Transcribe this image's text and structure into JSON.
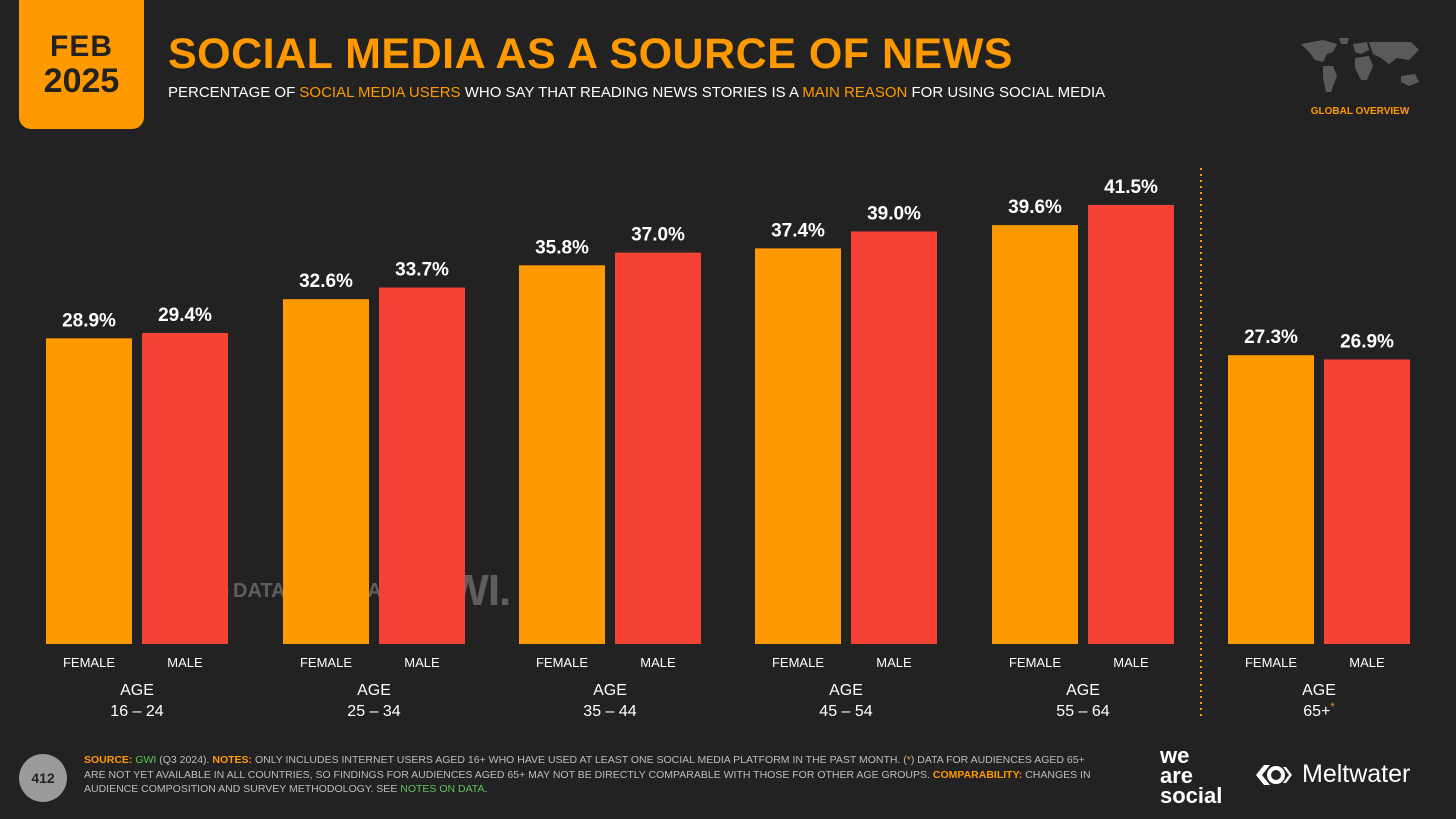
{
  "header": {
    "month": "FEB",
    "year": "2025",
    "title": "SOCIAL MEDIA AS A SOURCE OF NEWS",
    "subtitle_parts": [
      "PERCENTAGE OF ",
      "SOCIAL MEDIA USERS",
      " WHO SAY THAT READING NEWS STORIES IS A ",
      "MAIN REASON",
      " FOR USING SOCIAL MEDIA"
    ],
    "region_label": "GLOBAL OVERVIEW"
  },
  "colors": {
    "accent": "#FF9900",
    "female": "#FF9900",
    "male": "#F44336",
    "background": "#222222",
    "green": "#5FC35F"
  },
  "chart_data": {
    "type": "bar",
    "groups": [
      {
        "age_label": "AGE",
        "age_range": "16 – 24",
        "footnote": ""
      },
      {
        "age_label": "AGE",
        "age_range": "25 – 34",
        "footnote": ""
      },
      {
        "age_label": "AGE",
        "age_range": "35 – 44",
        "footnote": ""
      },
      {
        "age_label": "AGE",
        "age_range": "45 – 54",
        "footnote": ""
      },
      {
        "age_label": "AGE",
        "age_range": "55 – 64",
        "footnote": ""
      },
      {
        "age_label": "AGE",
        "age_range": "65+",
        "footnote": "*"
      }
    ],
    "series": [
      {
        "name": "FEMALE",
        "values": [
          28.9,
          32.6,
          35.8,
          37.4,
          39.6,
          27.3
        ],
        "labels": [
          "28.9%",
          "32.6%",
          "35.8%",
          "37.4%",
          "39.6%",
          "27.3%"
        ]
      },
      {
        "name": "MALE",
        "values": [
          29.4,
          33.7,
          37.0,
          39.0,
          41.5,
          26.9
        ],
        "labels": [
          "29.4%",
          "33.7%",
          "37.0%",
          "39.0%",
          "41.5%",
          "26.9%"
        ]
      }
    ],
    "ylim": [
      0,
      41.5
    ]
  },
  "watermark": {
    "datareportal": "DATAREPORTAL",
    "gwi": "GWI."
  },
  "footer": {
    "page_number": "412",
    "source_label": "SOURCE:",
    "source_name": "GWI",
    "source_period": " (Q3 2024). ",
    "notes_label": "NOTES:",
    "notes_text_1": " ONLY INCLUDES INTERNET USERS AGED 16+ WHO HAVE USED AT LEAST ONE SOCIAL MEDIA PLATFORM IN THE PAST MONTH. (",
    "notes_asterisk": "*",
    "notes_text_2": ") DATA FOR AUDIENCES AGED 65+ ARE NOT YET AVAILABLE IN ALL COUNTRIES, SO FINDINGS FOR AUDIENCES AGED 65+ MAY NOT BE DIRECTLY COMPARABLE WITH THOSE FOR OTHER AGE GROUPS. ",
    "comparability_label": "COMPARABILITY:",
    "comparability_text": " CHANGES IN AUDIENCE COMPOSITION AND SURVEY METHODOLOGY. SEE ",
    "notes_link": "NOTES ON DATA",
    "end": ".",
    "brand_was": [
      "we",
      "are",
      "social"
    ],
    "brand_meltwater": "Meltwater"
  }
}
